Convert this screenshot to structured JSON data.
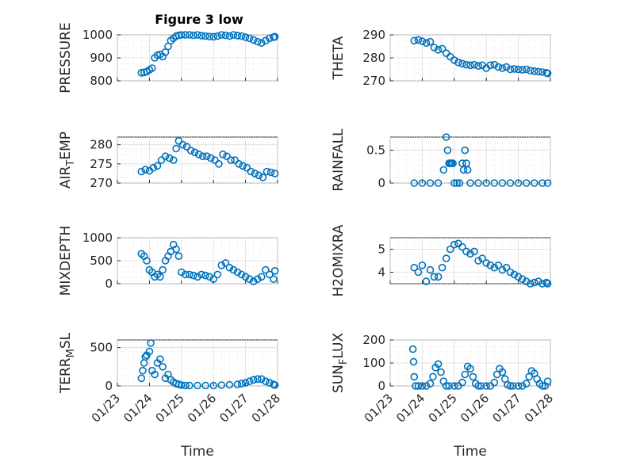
{
  "figure": {
    "title": "Figure 3 low"
  },
  "colors": {
    "marker": "#0072BD",
    "axes": "#262626",
    "grid": "#dcdcdc"
  },
  "chart_data": [
    {
      "type": "scatter",
      "title": "Figure 3 low",
      "ylabel": "PRESSURE",
      "ylim": [
        800,
        1000
      ],
      "yticks": [
        800,
        900,
        1000
      ],
      "xlim": [
        "01/23",
        "01/28"
      ],
      "xtick_labels": [],
      "xlabel": "",
      "grid": true,
      "x": [
        "01/23 18:00",
        "01/23 20:00",
        "01/23 22:00",
        "01/24 00:00",
        "01/24 02:00",
        "01/24 04:00",
        "01/24 06:00",
        "01/24 08:00",
        "01/24 10:00",
        "01/24 12:00",
        "01/24 14:00",
        "01/24 16:00",
        "01/24 18:00",
        "01/24 20:00",
        "01/24 22:00",
        "01/25 00:00",
        "01/25 03:00",
        "01/25 06:00",
        "01/25 09:00",
        "01/25 12:00",
        "01/25 15:00",
        "01/25 18:00",
        "01/25 21:00",
        "01/26 00:00",
        "01/26 03:00",
        "01/26 06:00",
        "01/26 09:00",
        "01/26 12:00",
        "01/26 15:00",
        "01/26 18:00",
        "01/26 21:00",
        "01/27 00:00",
        "01/27 03:00",
        "01/27 06:00",
        "01/27 09:00",
        "01/27 12:00",
        "01/27 15:00",
        "01/27 18:00",
        "01/27 21:00",
        "01/27 22:00"
      ],
      "y": [
        835,
        837,
        840,
        848,
        855,
        900,
        912,
        915,
        905,
        925,
        950,
        975,
        985,
        995,
        998,
        1000,
        1000,
        1000,
        998,
        1000,
        997,
        995,
        993,
        992,
        995,
        1000,
        998,
        995,
        1000,
        997,
        995,
        990,
        985,
        978,
        970,
        965,
        975,
        985,
        990,
        992
      ]
    },
    {
      "type": "scatter",
      "ylabel": "THETA",
      "ylim": [
        270,
        290
      ],
      "yticks": [
        270,
        280,
        290
      ],
      "xlim": [
        "01/23",
        "01/28"
      ],
      "xtick_labels": [],
      "xlabel": "",
      "grid": true,
      "x": [
        "01/23 18:00",
        "01/23 21:00",
        "01/24 00:00",
        "01/24 03:00",
        "01/24 06:00",
        "01/24 09:00",
        "01/24 12:00",
        "01/24 15:00",
        "01/24 18:00",
        "01/24 21:00",
        "01/25 00:00",
        "01/25 03:00",
        "01/25 06:00",
        "01/25 09:00",
        "01/25 12:00",
        "01/25 15:00",
        "01/25 18:00",
        "01/25 21:00",
        "01/26 00:00",
        "01/26 03:00",
        "01/26 06:00",
        "01/26 09:00",
        "01/26 12:00",
        "01/26 15:00",
        "01/26 18:00",
        "01/26 21:00",
        "01/27 00:00",
        "01/27 03:00",
        "01/27 06:00",
        "01/27 09:00",
        "01/27 12:00",
        "01/27 15:00",
        "01/27 18:00",
        "01/27 21:00",
        "01/27 22:00"
      ],
      "y": [
        287.5,
        287.8,
        287.2,
        286.5,
        287.0,
        284.5,
        283.5,
        284.0,
        282.0,
        280.5,
        279.0,
        278.0,
        277.5,
        277.0,
        276.8,
        277.0,
        276.5,
        276.8,
        275.5,
        276.8,
        277.0,
        276.0,
        275.5,
        276.0,
        275.0,
        275.2,
        275.0,
        274.8,
        275.0,
        274.5,
        274.2,
        274.0,
        273.8,
        273.5,
        273.2
      ]
    },
    {
      "type": "scatter",
      "ylabel": "AIR_TEMP",
      "ylim": [
        270,
        282
      ],
      "yticks": [
        270,
        275,
        280
      ],
      "xlim": [
        "01/23",
        "01/28"
      ],
      "xtick_labels": [],
      "xlabel": "",
      "grid": true,
      "x": [
        "01/23 18:00",
        "01/23 21:00",
        "01/24 00:00",
        "01/24 03:00",
        "01/24 06:00",
        "01/24 09:00",
        "01/24 12:00",
        "01/24 15:00",
        "01/24 18:00",
        "01/24 20:00",
        "01/24 22:00",
        "01/25 01:00",
        "01/25 04:00",
        "01/25 07:00",
        "01/25 10:00",
        "01/25 13:00",
        "01/25 16:00",
        "01/25 19:00",
        "01/25 22:00",
        "01/26 01:00",
        "01/26 04:00",
        "01/26 07:00",
        "01/26 10:00",
        "01/26 13:00",
        "01/26 16:00",
        "01/26 19:00",
        "01/26 22:00",
        "01/27 01:00",
        "01/27 04:00",
        "01/27 07:00",
        "01/27 10:00",
        "01/27 13:00",
        "01/27 16:00",
        "01/27 19:00",
        "01/27 22:00"
      ],
      "y": [
        273.0,
        273.5,
        273.2,
        274.0,
        274.5,
        276.0,
        277.0,
        276.5,
        276.0,
        279.0,
        281.0,
        280.0,
        279.5,
        278.5,
        278.0,
        277.5,
        277.0,
        277.0,
        276.5,
        276.0,
        275.0,
        277.5,
        277.0,
        276.0,
        276.0,
        275.0,
        274.5,
        274.0,
        273.0,
        272.5,
        272.0,
        271.5,
        273.0,
        272.8,
        272.5
      ]
    },
    {
      "type": "scatter",
      "ylabel": "RAINFALL",
      "ylim": [
        0,
        0.7
      ],
      "yticks": [
        0,
        0.5
      ],
      "xlim": [
        "01/23",
        "01/28"
      ],
      "xtick_labels": [],
      "xlabel": "",
      "grid": true,
      "x": [
        "01/23 18:00",
        "01/24 00:00",
        "01/24 06:00",
        "01/24 12:00",
        "01/24 16:00",
        "01/24 18:00",
        "01/24 19:00",
        "01/24 20:00",
        "01/24 21:00",
        "01/24 22:00",
        "01/24 23:00",
        "01/25 00:00",
        "01/25 02:00",
        "01/25 04:00",
        "01/25 06:00",
        "01/25 07:00",
        "01/25 08:00",
        "01/25 09:00",
        "01/25 10:00",
        "01/25 12:00",
        "01/25 18:00",
        "01/26 00:00",
        "01/26 06:00",
        "01/26 12:00",
        "01/26 18:00",
        "01/27 00:00",
        "01/27 06:00",
        "01/27 12:00",
        "01/27 18:00",
        "01/27 22:00"
      ],
      "y": [
        0,
        0,
        0,
        0,
        0.2,
        0.7,
        0.5,
        0.3,
        0.3,
        0.3,
        0.3,
        0,
        0,
        0,
        0.3,
        0.2,
        0.5,
        0.3,
        0.2,
        0,
        0,
        0,
        0,
        0,
        0,
        0,
        0,
        0,
        0,
        0
      ]
    },
    {
      "type": "scatter",
      "ylabel": "MIXDEPTH",
      "ylim": [
        0,
        1000
      ],
      "yticks": [
        0,
        500,
        1000
      ],
      "xlim": [
        "01/23",
        "01/28"
      ],
      "xtick_labels": [],
      "xlabel": "",
      "grid": true,
      "x": [
        "01/23 18:00",
        "01/23 20:00",
        "01/23 22:00",
        "01/24 00:00",
        "01/24 02:00",
        "01/24 04:00",
        "01/24 06:00",
        "01/24 08:00",
        "01/24 10:00",
        "01/24 12:00",
        "01/24 14:00",
        "01/24 16:00",
        "01/24 18:00",
        "01/24 20:00",
        "01/24 22:00",
        "01/25 00:00",
        "01/25 03:00",
        "01/25 06:00",
        "01/25 09:00",
        "01/25 12:00",
        "01/25 15:00",
        "01/25 18:00",
        "01/25 21:00",
        "01/26 00:00",
        "01/26 03:00",
        "01/26 06:00",
        "01/26 09:00",
        "01/26 12:00",
        "01/26 15:00",
        "01/26 18:00",
        "01/26 21:00",
        "01/27 00:00",
        "01/27 03:00",
        "01/27 06:00",
        "01/27 09:00",
        "01/27 12:00",
        "01/27 15:00",
        "01/27 18:00",
        "01/27 21:00",
        "01/27 22:00"
      ],
      "y": [
        650,
        600,
        500,
        300,
        250,
        150,
        200,
        150,
        300,
        500,
        600,
        700,
        850,
        750,
        600,
        250,
        200,
        200,
        180,
        150,
        200,
        180,
        150,
        100,
        200,
        400,
        450,
        350,
        300,
        250,
        200,
        150,
        100,
        50,
        100,
        150,
        300,
        200,
        100,
        280
      ]
    },
    {
      "type": "scatter",
      "ylabel": "H2OMIXRA",
      "ylim": [
        3.5,
        5.5
      ],
      "yticks": [
        4,
        5
      ],
      "xlim": [
        "01/23",
        "01/28"
      ],
      "xtick_labels": [],
      "xlabel": "",
      "grid": true,
      "x": [
        "01/23 18:00",
        "01/23 21:00",
        "01/24 00:00",
        "01/24 03:00",
        "01/24 06:00",
        "01/24 09:00",
        "01/24 12:00",
        "01/24 15:00",
        "01/24 18:00",
        "01/24 21:00",
        "01/25 00:00",
        "01/25 03:00",
        "01/25 06:00",
        "01/25 09:00",
        "01/25 12:00",
        "01/25 15:00",
        "01/25 18:00",
        "01/25 21:00",
        "01/26 00:00",
        "01/26 03:00",
        "01/26 06:00",
        "01/26 09:00",
        "01/26 12:00",
        "01/26 15:00",
        "01/26 18:00",
        "01/26 21:00",
        "01/27 00:00",
        "01/27 03:00",
        "01/27 06:00",
        "01/27 09:00",
        "01/27 12:00",
        "01/27 15:00",
        "01/27 18:00",
        "01/27 21:00",
        "01/27 22:00"
      ],
      "y": [
        4.2,
        4.0,
        4.3,
        3.6,
        4.1,
        3.8,
        3.8,
        4.2,
        4.6,
        5.0,
        5.2,
        5.25,
        5.1,
        4.9,
        4.8,
        4.9,
        4.5,
        4.6,
        4.4,
        4.3,
        4.2,
        4.3,
        4.1,
        4.2,
        4.0,
        3.9,
        3.8,
        3.7,
        3.6,
        3.5,
        3.55,
        3.6,
        3.5,
        3.55,
        3.5
      ]
    },
    {
      "type": "scatter",
      "ylabel": "TERR_MSL",
      "ylim": [
        0,
        600
      ],
      "yticks": [
        0,
        500
      ],
      "xlim": [
        "01/23",
        "01/28"
      ],
      "xtick_labels": [
        "01/23",
        "01/24",
        "01/25",
        "01/26",
        "01/27",
        "01/28"
      ],
      "xlabel": "Time",
      "grid": true,
      "x": [
        "01/23 18:00",
        "01/23 19:00",
        "01/23 20:00",
        "01/23 21:00",
        "01/23 22:00",
        "01/24 00:00",
        "01/24 01:00",
        "01/24 02:00",
        "01/24 04:00",
        "01/24 06:00",
        "01/24 08:00",
        "01/24 10:00",
        "01/24 12:00",
        "01/24 14:00",
        "01/24 16:00",
        "01/24 18:00",
        "01/24 20:00",
        "01/24 22:00",
        "01/25 00:00",
        "01/25 03:00",
        "01/25 06:00",
        "01/25 12:00",
        "01/25 18:00",
        "01/26 00:00",
        "01/26 06:00",
        "01/26 12:00",
        "01/26 18:00",
        "01/26 21:00",
        "01/27 00:00",
        "01/27 03:00",
        "01/27 06:00",
        "01/27 09:00",
        "01/27 12:00",
        "01/27 15:00",
        "01/27 18:00",
        "01/27 21:00",
        "01/27 22:00"
      ],
      "y": [
        100,
        200,
        300,
        380,
        400,
        450,
        560,
        200,
        150,
        300,
        350,
        250,
        100,
        150,
        80,
        50,
        30,
        20,
        10,
        5,
        5,
        5,
        5,
        5,
        10,
        15,
        20,
        30,
        40,
        60,
        80,
        90,
        90,
        60,
        40,
        20,
        10
      ]
    },
    {
      "type": "scatter",
      "ylabel": "SUN_FLUX",
      "ylim": [
        0,
        200
      ],
      "yticks": [
        0,
        100,
        200
      ],
      "xlim": [
        "01/23",
        "01/28"
      ],
      "xtick_labels": [
        "01/23",
        "01/24",
        "01/25",
        "01/26",
        "01/27",
        "01/28"
      ],
      "xlabel": "Time",
      "grid": true,
      "x": [
        "01/23 17:00",
        "01/23 17:30",
        "01/23 18:00",
        "01/23 19:00",
        "01/23 21:00",
        "01/24 00:00",
        "01/24 03:00",
        "01/24 06:00",
        "01/24 08:00",
        "01/24 10:00",
        "01/24 12:00",
        "01/24 14:00",
        "01/24 16:00",
        "01/24 18:00",
        "01/24 20:00",
        "01/25 00:00",
        "01/25 03:00",
        "01/25 06:00",
        "01/25 08:00",
        "01/25 10:00",
        "01/25 12:00",
        "01/25 14:00",
        "01/25 16:00",
        "01/25 18:00",
        "01/25 20:00",
        "01/26 00:00",
        "01/26 03:00",
        "01/26 06:00",
        "01/26 08:00",
        "01/26 10:00",
        "01/26 12:00",
        "01/26 14:00",
        "01/26 16:00",
        "01/26 18:00",
        "01/26 20:00",
        "01/27 00:00",
        "01/27 03:00",
        "01/27 06:00",
        "01/27 08:00",
        "01/27 10:00",
        "01/27 12:00",
        "01/27 14:00",
        "01/27 16:00",
        "01/27 18:00",
        "01/27 20:00",
        "01/27 22:00"
      ],
      "y": [
        160,
        105,
        40,
        0,
        0,
        0,
        0,
        10,
        40,
        80,
        95,
        60,
        20,
        0,
        0,
        0,
        0,
        15,
        50,
        85,
        75,
        40,
        10,
        0,
        0,
        0,
        0,
        15,
        50,
        75,
        60,
        30,
        5,
        0,
        0,
        0,
        0,
        10,
        40,
        65,
        55,
        30,
        10,
        0,
        0,
        20
      ]
    }
  ]
}
